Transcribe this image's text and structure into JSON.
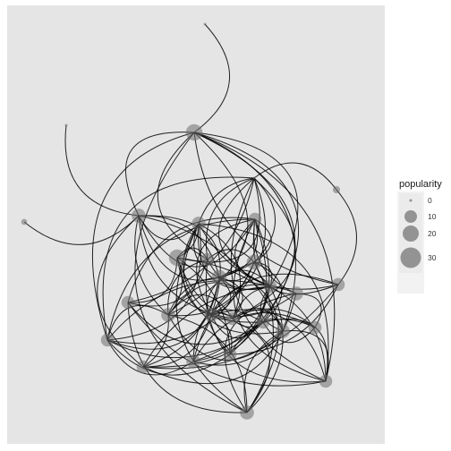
{
  "chart_data": {
    "type": "network",
    "legend": {
      "title": "popularity",
      "placement": "right",
      "entries": [
        {
          "label": "0",
          "value": 0
        },
        {
          "label": "10",
          "value": 10
        },
        {
          "label": "20",
          "value": 20
        },
        {
          "label": "30",
          "value": 30
        }
      ]
    },
    "grid": false,
    "nodes": [
      {
        "id": 0,
        "popularity": 0
      },
      {
        "id": 1,
        "popularity": 0
      },
      {
        "id": 2,
        "popularity": 18
      },
      {
        "id": 3,
        "popularity": 2
      },
      {
        "id": 4,
        "popularity": 1
      },
      {
        "id": 5,
        "popularity": 0
      },
      {
        "id": 6,
        "popularity": 12
      },
      {
        "id": 7,
        "popularity": 12
      },
      {
        "id": 8,
        "popularity": 10
      },
      {
        "id": 9,
        "popularity": 10
      },
      {
        "id": 10,
        "popularity": 14
      },
      {
        "id": 11,
        "popularity": 12
      },
      {
        "id": 12,
        "popularity": 10
      },
      {
        "id": 13,
        "popularity": 10
      },
      {
        "id": 14,
        "popularity": 12
      },
      {
        "id": 15,
        "popularity": 12
      },
      {
        "id": 16,
        "popularity": 10
      },
      {
        "id": 17,
        "popularity": 10
      },
      {
        "id": 18,
        "popularity": 12
      },
      {
        "id": 19,
        "popularity": 10
      },
      {
        "id": 20,
        "popularity": 12
      },
      {
        "id": 21,
        "popularity": 10
      },
      {
        "id": 22,
        "popularity": 10
      },
      {
        "id": 23,
        "popularity": 12
      },
      {
        "id": 24,
        "popularity": 14
      },
      {
        "id": 25,
        "popularity": 18
      },
      {
        "id": 26,
        "popularity": 10
      },
      {
        "id": 27,
        "popularity": 10
      },
      {
        "id": 28,
        "popularity": 10
      }
    ]
  },
  "colors": {
    "panel": "#e5e5e5",
    "edge": "#000000",
    "node": "#6e6e6e",
    "legend_bg": "#f2f2f2"
  }
}
